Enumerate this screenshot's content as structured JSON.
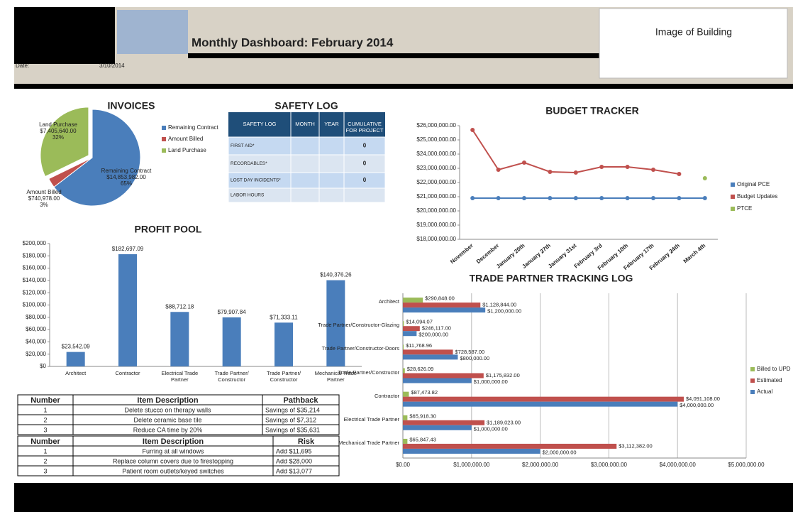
{
  "header": {
    "title": "Monthly Dashboard: February 2014",
    "date_label": "Date:",
    "date": "3/10/2014",
    "image_placeholder": "Image of Building"
  },
  "safety_log": {
    "title": "SAFETY LOG",
    "header": [
      "SAFETY LOG",
      "MONTH",
      "YEAR",
      "CUMULATIVE FOR PROJECT"
    ],
    "rows": [
      {
        "label": "FIRST AID*",
        "cumulative": 0
      },
      {
        "label": "RECORDABLES*",
        "cumulative": 0
      },
      {
        "label": "LOST DAY INCIDENTS*",
        "cumulative": 0
      },
      {
        "label": "LABOR HOURS"
      }
    ]
  },
  "pathback_table": {
    "header": [
      "Number",
      "Item Description",
      "Pathback"
    ],
    "rows": [
      [
        1,
        "Delete stucco on therapy walls",
        "Savings of $35,214"
      ],
      [
        2,
        "Delete ceramic base tile",
        "Savings of $7,312"
      ],
      [
        3,
        "Reduce CA time by 20%",
        "Savings of $35,631"
      ]
    ]
  },
  "risk_table": {
    "header": [
      "Number",
      "Item Description",
      "Risk"
    ],
    "rows": [
      [
        1,
        "Furring at all windows",
        "Add $11,695"
      ],
      [
        2,
        "Replace column covers due to firestopping",
        "Add $28,000"
      ],
      [
        3,
        "Patient room outlets/keyed switches",
        "Add $13,077"
      ]
    ]
  },
  "chart_data": [
    {
      "type": "pie",
      "title": "INVOICES",
      "categories": [
        "Remaining Contract",
        "Amount Billed",
        "Land Purchase"
      ],
      "values": [
        14853982,
        740978,
        7405640
      ],
      "value_labels": [
        "$14,853,982.00",
        "$740,978.00",
        "$7,405,640.00"
      ],
      "percent_labels": [
        "65%",
        "3%",
        "32%"
      ],
      "colors": [
        "#4a7ebb",
        "#c0504d",
        "#9bbb59"
      ],
      "legend": "right"
    },
    {
      "type": "line",
      "title": "BUDGET TRACKER",
      "categories": [
        "November",
        "December",
        "January 20th",
        "January 27th",
        "January 31st",
        "February 3rd",
        "February 10th",
        "February 17th",
        "February 24th",
        "March 4th"
      ],
      "series": [
        {
          "name": "Original PCE",
          "color": "#4a7ebb",
          "values": [
            20900000,
            20900000,
            20900000,
            20900000,
            20900000,
            20900000,
            20900000,
            20900000,
            20900000,
            20900000
          ]
        },
        {
          "name": "Budget Updates",
          "color": "#c0504d",
          "values": [
            25700000,
            22900000,
            23400000,
            22750000,
            22700000,
            23100000,
            23100000,
            22900000,
            22600000,
            null
          ]
        },
        {
          "name": "PTCE",
          "color": "#9bbb59",
          "values": [
            null,
            null,
            null,
            null,
            null,
            null,
            null,
            null,
            null,
            22300000
          ]
        }
      ],
      "ylim": [
        18000000,
        26000000
      ],
      "yticks": [
        {
          "value": 18000000,
          "label": "$18,000,000.00"
        },
        {
          "value": 19000000,
          "label": "$19,000,000.00"
        },
        {
          "value": 20000000,
          "label": "$20,000,000.00"
        },
        {
          "value": 21000000,
          "label": "$21,000,000.00"
        },
        {
          "value": 22000000,
          "label": "$22,000,000.00"
        },
        {
          "value": 23000000,
          "label": "$23,000,000.00"
        },
        {
          "value": 24000000,
          "label": "$24,000,000.00"
        },
        {
          "value": 25000000,
          "label": "$25,000,000.00"
        },
        {
          "value": 26000000,
          "label": "$26,000,000.00"
        }
      ],
      "legend": "right"
    },
    {
      "type": "bar",
      "title": "PROFIT POOL",
      "categories": [
        "Architect",
        "Contractor",
        "Electrical Trade Partner",
        "Trade Partner/ Constructor",
        "Trade Partner/ Constructor",
        "Mechanical Trade Partner"
      ],
      "values": [
        23542.09,
        182697.09,
        88712.18,
        79907.84,
        71333.11,
        140376.26
      ],
      "value_labels": [
        "$23,542.09",
        "$182,697.09",
        "$88,712.18",
        "$79,907.84",
        "$71,333.11",
        "$140,376.26"
      ],
      "color": "#4a7ebb",
      "ylim": [
        0,
        200000
      ],
      "yticks": [
        {
          "value": 0,
          "label": "$0"
        },
        {
          "value": 20000,
          "label": "$20,000"
        },
        {
          "value": 40000,
          "label": "$40,000"
        },
        {
          "value": 60000,
          "label": "$60,000"
        },
        {
          "value": 80000,
          "label": "$80,000"
        },
        {
          "value": 100000,
          "label": "$100,000"
        },
        {
          "value": 120000,
          "label": "$120,000"
        },
        {
          "value": 140000,
          "label": "$140,000"
        },
        {
          "value": 160000,
          "label": "$160,000"
        },
        {
          "value": 180000,
          "label": "$180,000"
        },
        {
          "value": 200000,
          "label": "$200,000"
        }
      ]
    },
    {
      "type": "hbar",
      "title": "TRADE PARTNER TRACKING LOG",
      "categories": [
        "Architect",
        "Trade Partner/Constructor-Glazing",
        "Trade Partner/Constructor-Doors",
        "Trade Partner/Constructor",
        "Contractor",
        "Electrical Trade Partner",
        "Mechanical Trade Partner"
      ],
      "series": [
        {
          "name": "Billed to UPD",
          "color": "#9bbb59",
          "values": [
            290848,
            14094.07,
            11768.96,
            28626.09,
            87473.82,
            65918.3,
            65847.43
          ],
          "value_labels": [
            "$290,848.00",
            "$14,094.07",
            "$11,768.96",
            "$28,626.09",
            "$87,473.82",
            "$65,918.30",
            "$65,847.43"
          ]
        },
        {
          "name": "Estimated",
          "color": "#c0504d",
          "values": [
            1128844,
            246117,
            728587,
            1175832,
            4091108,
            1189023,
            3112382
          ],
          "value_labels": [
            "$1,128,844.00",
            "$246,117.00",
            "$728,587.00",
            "$1,175,832.00",
            "$4,091,108.00",
            "$1,189,023.00",
            "$3,112,382.00"
          ]
        },
        {
          "name": "Actual",
          "color": "#4a7ebb",
          "values": [
            1200000,
            200000,
            800000,
            1000000,
            4000000,
            1000000,
            2000000
          ],
          "value_labels": [
            "$1,200,000.00",
            "$200,000.00",
            "$800,000.00",
            "$1,000,000.00",
            "$4,000,000.00",
            "$1,000,000.00",
            "$2,000,000.00"
          ]
        }
      ],
      "xlim": [
        0,
        5000000
      ],
      "xticks": [
        {
          "value": 0,
          "label": "$0.00"
        },
        {
          "value": 1000000,
          "label": "$1,000,000.00"
        },
        {
          "value": 2000000,
          "label": "$2,000,000.00"
        },
        {
          "value": 3000000,
          "label": "$3,000,000.00"
        },
        {
          "value": 4000000,
          "label": "$4,000,000.00"
        },
        {
          "value": 5000000,
          "label": "$5,000,000.00"
        }
      ],
      "grid": true,
      "legend": "right"
    }
  ]
}
